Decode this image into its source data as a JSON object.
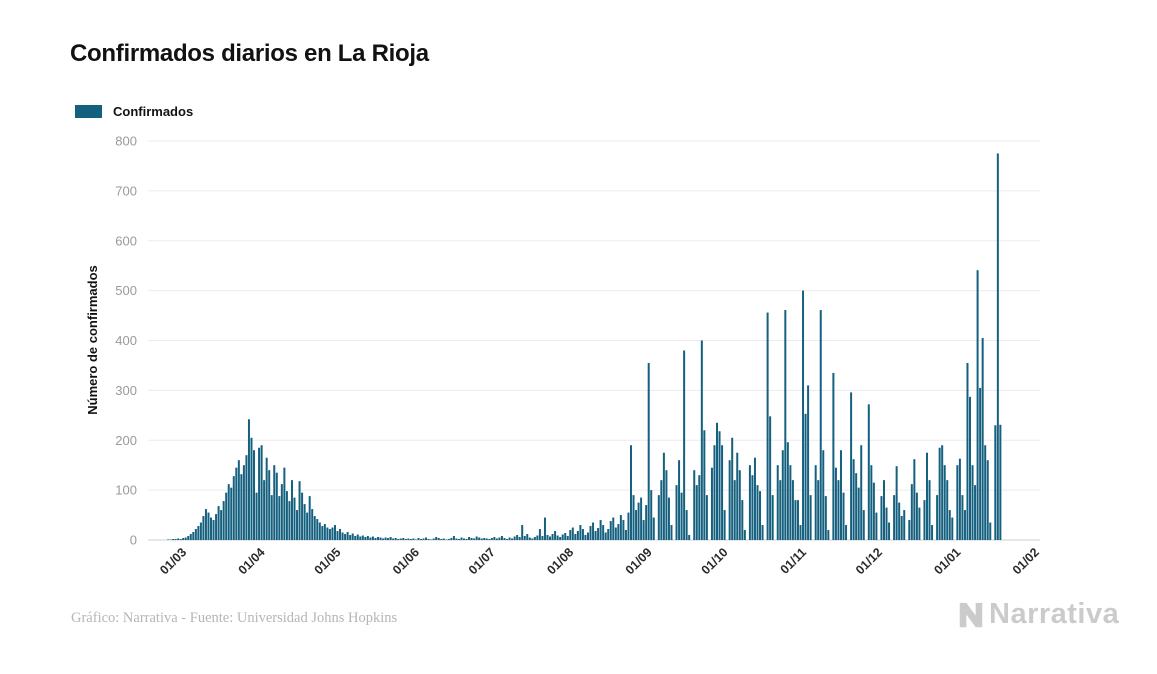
{
  "header": {
    "title": "Confirmados diarios en La Rioja"
  },
  "legend": {
    "items": [
      {
        "label": "Confirmados",
        "color": "#15607f"
      }
    ]
  },
  "chart_data": {
    "type": "bar",
    "title": "Confirmados diarios en La Rioja",
    "series_name": "Confirmados",
    "xlabel": "",
    "ylabel": "Número de confirmados",
    "ylim": [
      0,
      800
    ],
    "yticks": [
      0,
      100,
      200,
      300,
      400,
      500,
      600,
      700,
      800
    ],
    "grid": true,
    "legend_position": "top-left",
    "bar_color": "#15607f",
    "grid_color": "#ebebeb",
    "baseline_color": "#cfcfcf",
    "ytick_color": "#9a9a9a",
    "xtick_color": "#2b2b2b",
    "x_tick_labels": [
      "01/03",
      "01/04",
      "01/05",
      "01/06",
      "01/07",
      "01/08",
      "01/09",
      "01/10",
      "01/11",
      "01/12",
      "01/01",
      "01/02"
    ],
    "x_tick_indices": [
      4,
      35,
      65,
      96,
      126,
      157,
      188,
      218,
      249,
      279,
      310,
      341
    ],
    "values": [
      1,
      1,
      2,
      2,
      3,
      2,
      4,
      5,
      8,
      12,
      16,
      22,
      28,
      35,
      48,
      62,
      55,
      45,
      40,
      52,
      68,
      60,
      78,
      95,
      112,
      105,
      128,
      145,
      160,
      132,
      150,
      170,
      242,
      205,
      180,
      95,
      185,
      190,
      120,
      165,
      140,
      90,
      150,
      135,
      88,
      112,
      145,
      98,
      78,
      120,
      85,
      60,
      118,
      95,
      72,
      55,
      88,
      62,
      48,
      42,
      35,
      28,
      32,
      25,
      22,
      25,
      30,
      18,
      22,
      15,
      12,
      16,
      10,
      13,
      8,
      11,
      7,
      9,
      6,
      8,
      5,
      7,
      4,
      6,
      5,
      3,
      5,
      4,
      6,
      3,
      4,
      2,
      3,
      4,
      2,
      3,
      2,
      3,
      1,
      4,
      2,
      3,
      5,
      2,
      1,
      3,
      6,
      4,
      2,
      3,
      1,
      2,
      4,
      8,
      3,
      2,
      5,
      3,
      2,
      6,
      4,
      3,
      7,
      5,
      3,
      4,
      3,
      2,
      4,
      6,
      3,
      5,
      8,
      4,
      2,
      5,
      3,
      7,
      10,
      6,
      30,
      8,
      12,
      5,
      3,
      6,
      9,
      22,
      8,
      45,
      10,
      7,
      12,
      18,
      9,
      6,
      11,
      14,
      8,
      20,
      25,
      12,
      18,
      30,
      22,
      10,
      15,
      28,
      35,
      18,
      24,
      40,
      30,
      15,
      22,
      38,
      45,
      25,
      32,
      50,
      40,
      20,
      55,
      190,
      90,
      60,
      75,
      85,
      40,
      70,
      355,
      100,
      45,
      0,
      90,
      120,
      175,
      140,
      85,
      30,
      0,
      110,
      160,
      95,
      380,
      60,
      10,
      0,
      140,
      110,
      130,
      400,
      220,
      90,
      0,
      145,
      190,
      235,
      218,
      190,
      60,
      0,
      160,
      205,
      120,
      175,
      140,
      80,
      20,
      0,
      150,
      130,
      165,
      110,
      98,
      30,
      0,
      456,
      248,
      90,
      0,
      150,
      120,
      180,
      461,
      196,
      150,
      120,
      80,
      80,
      30,
      500,
      253,
      310,
      90,
      0,
      150,
      120,
      461,
      180,
      88,
      20,
      0,
      335,
      145,
      120,
      180,
      95,
      30,
      0,
      296,
      162,
      134,
      105,
      190,
      60,
      0,
      272,
      150,
      115,
      55,
      0,
      88,
      120,
      65,
      35,
      0,
      90,
      148,
      75,
      48,
      60,
      0,
      40,
      112,
      162,
      95,
      65,
      0,
      80,
      175,
      120,
      30,
      0,
      90,
      185,
      190,
      150,
      120,
      60,
      45,
      0,
      150,
      163,
      90,
      60,
      355,
      287,
      150,
      110,
      541,
      305,
      405,
      190,
      160,
      35,
      0,
      230,
      775,
      231,
      0
    ]
  },
  "footer": {
    "credit": "Gráfico: Narrativa - Fuente: Universidad Johns Hopkins",
    "brand": "Narrativa"
  }
}
